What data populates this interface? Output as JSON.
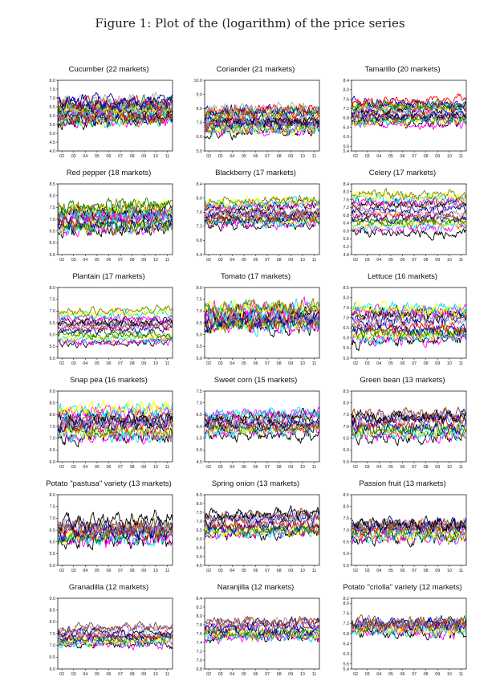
{
  "page": {
    "figure_title": "Figure 1: Plot of the (logarithm) of the price series"
  },
  "palette": [
    "#000000",
    "#ff00ff",
    "#00e5ee",
    "#ffff00",
    "#808000",
    "#008000",
    "#0000cd",
    "#ff0000",
    "#a9a9a9",
    "#00008b",
    "#9370db",
    "#8b4513"
  ],
  "chart_data": [
    {
      "type": "line",
      "title": "Cucumber (22 markets)",
      "ylim": [
        4.0,
        8.0
      ],
      "yticks": [
        "4.0",
        "4.5",
        "5.0",
        "5.5",
        "6.0",
        "6.5",
        "7.0",
        "7.5",
        "8.0"
      ],
      "xticks": [
        "02",
        "03",
        "04",
        "05",
        "06",
        "07",
        "08",
        "09",
        "10",
        "11"
      ],
      "series_count": 22,
      "approx_level": [
        5.6,
        6.8
      ],
      "spread": 0.55
    },
    {
      "type": "line",
      "title": "Coriander (21 markets)",
      "ylim": [
        5.0,
        10.0
      ],
      "yticks": [
        "5.0",
        "6.0",
        "7.0",
        "8.0",
        "9.0",
        "10.0"
      ],
      "xticks": [
        "02",
        "03",
        "04",
        "05",
        "06",
        "07",
        "08",
        "09",
        "10",
        "11"
      ],
      "series_count": 21,
      "approx_level": [
        6.3,
        8.0
      ],
      "spread": 0.6
    },
    {
      "type": "line",
      "title": "Tamarillo (20 markets)",
      "ylim": [
        5.4,
        8.4
      ],
      "yticks": [
        "5.4",
        "5.6",
        "6.0",
        "6.4",
        "6.8",
        "7.2",
        "7.6",
        "8.0",
        "8.4"
      ],
      "xticks": [
        "02",
        "03",
        "04",
        "05",
        "06",
        "07",
        "08",
        "09",
        "10",
        "11"
      ],
      "series_count": 20,
      "approx_level": [
        6.6,
        7.4
      ],
      "spread": 0.3
    },
    {
      "type": "line",
      "title": "Red pepper (18 markets)",
      "ylim": [
        5.5,
        8.5
      ],
      "yticks": [
        "5.5",
        "6.0",
        "6.5",
        "7.0",
        "7.5",
        "8.0",
        "8.5"
      ],
      "xticks": [
        "02",
        "03",
        "04",
        "05",
        "06",
        "07",
        "08",
        "09",
        "10",
        "11"
      ],
      "series_count": 18,
      "approx_level": [
        6.5,
        7.5
      ],
      "spread": 0.45
    },
    {
      "type": "line",
      "title": "Blackberry (17 markets)",
      "ylim": [
        6.4,
        8.4
      ],
      "yticks": [
        "6.4",
        "6.8",
        "7.2",
        "7.6",
        "8.0",
        "8.4"
      ],
      "xticks": [
        "02",
        "03",
        "04",
        "05",
        "06",
        "07",
        "08",
        "09",
        "10",
        "11"
      ],
      "series_count": 17,
      "approx_level": [
        7.2,
        7.9
      ],
      "spread": 0.2
    },
    {
      "type": "line",
      "title": "Celery (17 markets)",
      "ylim": [
        4.8,
        8.4
      ],
      "yticks": [
        "4.8",
        "5.2",
        "5.6",
        "6.0",
        "6.4",
        "6.8",
        "7.2",
        "7.6",
        "8.0",
        "8.4"
      ],
      "xticks": [
        "02",
        "03",
        "04",
        "05",
        "06",
        "07",
        "08",
        "09",
        "10",
        "11"
      ],
      "series_count": 17,
      "approx_level": [
        6.0,
        7.8
      ],
      "spread": 0.35
    },
    {
      "type": "line",
      "title": "Plantain (17 markets)",
      "ylim": [
        5.0,
        8.0
      ],
      "yticks": [
        "5.0",
        "5.5",
        "6.0",
        "6.5",
        "7.0",
        "7.5",
        "8.0"
      ],
      "xticks": [
        "02",
        "03",
        "04",
        "05",
        "06",
        "07",
        "08",
        "09",
        "10",
        "11"
      ],
      "series_count": 17,
      "approx_level": [
        5.6,
        7.0
      ],
      "spread": 0.25
    },
    {
      "type": "line",
      "title": "Tomato (17 markets)",
      "ylim": [
        5.0,
        8.0
      ],
      "yticks": [
        "5.0",
        "5.5",
        "6.0",
        "6.5",
        "7.0",
        "7.5",
        "8.0"
      ],
      "xticks": [
        "02",
        "03",
        "04",
        "05",
        "06",
        "07",
        "08",
        "09",
        "10",
        "11"
      ],
      "series_count": 17,
      "approx_level": [
        6.3,
        7.1
      ],
      "spread": 0.5
    },
    {
      "type": "line",
      "title": "Lettuce (16 markets)",
      "ylim": [
        5.0,
        8.5
      ],
      "yticks": [
        "5.0",
        "5.5",
        "6.0",
        "6.5",
        "7.0",
        "7.5",
        "8.0",
        "8.5"
      ],
      "xticks": [
        "02",
        "03",
        "04",
        "05",
        "06",
        "07",
        "08",
        "09",
        "10",
        "11"
      ],
      "series_count": 16,
      "approx_level": [
        5.8,
        7.5
      ],
      "spread": 0.45
    },
    {
      "type": "line",
      "title": "Snap pea (16 markets)",
      "ylim": [
        6.0,
        9.0
      ],
      "yticks": [
        "6.0",
        "6.5",
        "7.0",
        "7.5",
        "8.0",
        "8.5",
        "9.0"
      ],
      "xticks": [
        "02",
        "03",
        "04",
        "05",
        "06",
        "07",
        "08",
        "09",
        "10",
        "11"
      ],
      "series_count": 16,
      "approx_level": [
        7.0,
        8.2
      ],
      "spread": 0.45
    },
    {
      "type": "line",
      "title": "Sweet corn (15 markets)",
      "ylim": [
        4.5,
        7.5
      ],
      "yticks": [
        "4.5",
        "5.0",
        "5.5",
        "6.0",
        "6.5",
        "7.0",
        "7.5"
      ],
      "xticks": [
        "02",
        "03",
        "04",
        "05",
        "06",
        "07",
        "08",
        "09",
        "10",
        "11"
      ],
      "series_count": 15,
      "approx_level": [
        5.7,
        6.5
      ],
      "spread": 0.35
    },
    {
      "type": "line",
      "title": "Green bean (13 markets)",
      "ylim": [
        5.5,
        8.5
      ],
      "yticks": [
        "5.5",
        "6.0",
        "6.5",
        "7.0",
        "7.5",
        "8.0",
        "8.5"
      ],
      "xticks": [
        "02",
        "03",
        "04",
        "05",
        "06",
        "07",
        "08",
        "09",
        "10",
        "11"
      ],
      "series_count": 13,
      "approx_level": [
        6.5,
        7.5
      ],
      "spread": 0.4
    },
    {
      "type": "line",
      "title": "Potato \"pastusa\" variety (13 markets)",
      "ylim": [
        5.0,
        8.0
      ],
      "yticks": [
        "5.0",
        "5.5",
        "6.0",
        "6.5",
        "7.0",
        "7.5",
        "8.0"
      ],
      "xticks": [
        "02",
        "03",
        "04",
        "05",
        "06",
        "07",
        "08",
        "09",
        "10",
        "11"
      ],
      "series_count": 13,
      "approx_level": [
        6.0,
        6.8
      ],
      "spread": 0.5
    },
    {
      "type": "line",
      "title": "Spring onion (13 markets)",
      "ylim": [
        4.5,
        8.5
      ],
      "yticks": [
        "4.5",
        "5.0",
        "5.5",
        "6.0",
        "6.5",
        "7.0",
        "7.5",
        "8.0",
        "8.5"
      ],
      "xticks": [
        "02",
        "03",
        "04",
        "05",
        "06",
        "07",
        "08",
        "09",
        "10",
        "11"
      ],
      "series_count": 13,
      "approx_level": [
        6.2,
        7.3
      ],
      "spread": 0.5
    },
    {
      "type": "line",
      "title": "Passion fruit (13 markets)",
      "ylim": [
        5.5,
        8.5
      ],
      "yticks": [
        "5.5",
        "6.0",
        "6.5",
        "7.0",
        "7.5",
        "8.0",
        "8.5"
      ],
      "xticks": [
        "02",
        "03",
        "04",
        "05",
        "06",
        "07",
        "08",
        "09",
        "10",
        "11"
      ],
      "series_count": 13,
      "approx_level": [
        6.6,
        7.3
      ],
      "spread": 0.4
    },
    {
      "type": "line",
      "title": "Granadilla (12 markets)",
      "ylim": [
        6.0,
        9.0
      ],
      "yticks": [
        "6.0",
        "6.5",
        "7.0",
        "7.5",
        "8.0",
        "8.5",
        "9.0"
      ],
      "xticks": [
        "02",
        "03",
        "04",
        "05",
        "06",
        "07",
        "08",
        "09",
        "10",
        "11"
      ],
      "series_count": 12,
      "approx_level": [
        7.0,
        7.7
      ],
      "spread": 0.3
    },
    {
      "type": "line",
      "title": "Naranjilla (12 markets)",
      "ylim": [
        6.8,
        8.4
      ],
      "yticks": [
        "6.8",
        "7.0",
        "7.2",
        "7.4",
        "7.6",
        "7.8",
        "8.0",
        "8.2",
        "8.4"
      ],
      "xticks": [
        "02",
        "03",
        "04",
        "05",
        "06",
        "07",
        "08",
        "09",
        "10",
        "11"
      ],
      "series_count": 12,
      "approx_level": [
        7.5,
        7.8
      ],
      "spread": 0.18
    },
    {
      "type": "line",
      "title": "Potato \"criolla\" variety (12 markets)",
      "ylim": [
        5.4,
        8.2
      ],
      "yticks": [
        "5.4",
        "5.6",
        "6.0",
        "6.4",
        "6.8",
        "7.2",
        "7.6",
        "8.0",
        "8.2"
      ],
      "xticks": [
        "02",
        "03",
        "04",
        "05",
        "06",
        "07",
        "08",
        "09",
        "10",
        "11"
      ],
      "series_count": 12,
      "approx_level": [
        6.8,
        7.3
      ],
      "spread": 0.35
    }
  ]
}
